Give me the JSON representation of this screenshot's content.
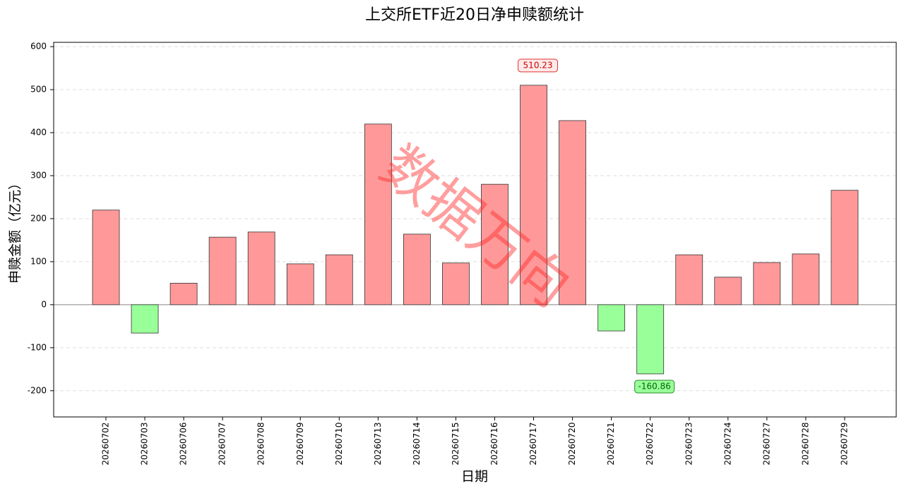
{
  "chart_data": {
    "type": "bar",
    "title": "上交所ETF近20日净申赎额统计",
    "x_label": "日期",
    "y_label": "申赎金额（亿元）",
    "watermark": "数据万向",
    "categories": [
      "20260702",
      "20260703",
      "20260706",
      "20260707",
      "20260708",
      "20260709",
      "20260710",
      "20260713",
      "20260714",
      "20260715",
      "20260716",
      "20260717",
      "20260720",
      "20260721",
      "20260722",
      "20260723",
      "20260724",
      "20260727",
      "20260728",
      "20260729"
    ],
    "values": [
      220,
      -66,
      50,
      157,
      169,
      95,
      116,
      420,
      164,
      97,
      280,
      510.23,
      428,
      -61,
      -160.86,
      116,
      64,
      98,
      118,
      266
    ],
    "value_labels": [
      null,
      null,
      null,
      null,
      null,
      null,
      null,
      null,
      null,
      null,
      null,
      "510.23",
      null,
      null,
      "-160.86",
      null,
      null,
      null,
      null,
      null
    ],
    "positive_color": "#ff9999",
    "negative_color": "#99ff99",
    "ylim": [
      -261,
      610
    ],
    "yticks": [
      -200,
      -100,
      0,
      100,
      200,
      300,
      400,
      500,
      600
    ],
    "grid": true
  }
}
